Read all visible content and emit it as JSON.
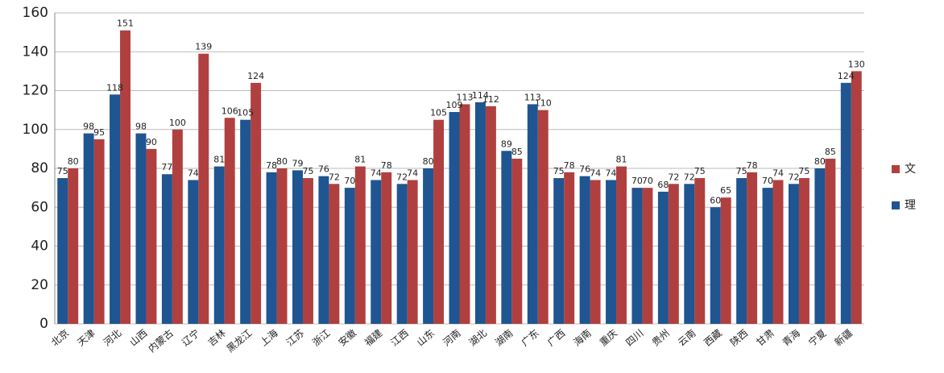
{
  "chart_data": {
    "type": "bar",
    "categories": [
      "北京",
      "天津",
      "河北",
      "山西",
      "内蒙古",
      "辽宁",
      "吉林",
      "黑龙江",
      "上海",
      "江苏",
      "浙江",
      "安徽",
      "福建",
      "江西",
      "山东",
      "河南",
      "湖北",
      "湖南",
      "广东",
      "广西",
      "海南",
      "重庆",
      "四川",
      "贵州",
      "云南",
      "西藏",
      "陕西",
      "甘肃",
      "青海",
      "宁夏",
      "新疆"
    ],
    "series": [
      {
        "name": "文",
        "color": "#b0403f",
        "values": [
          80,
          95,
          151,
          90,
          100,
          139,
          106,
          124,
          80,
          75,
          72,
          81,
          78,
          74,
          105,
          113,
          112,
          85,
          110,
          78,
          74,
          81,
          70,
          72,
          75,
          65,
          78,
          74,
          75,
          85,
          130
        ]
      },
      {
        "name": "理",
        "color": "#1f5591",
        "values": [
          75,
          98,
          118,
          98,
          77,
          74,
          81,
          105,
          78,
          79,
          76,
          70,
          74,
          72,
          80,
          109,
          114,
          89,
          113,
          75,
          76,
          74,
          70,
          68,
          72,
          60,
          75,
          70,
          72,
          80,
          124
        ]
      }
    ],
    "ylim": [
      0,
      160
    ],
    "yticks": [
      0,
      20,
      40,
      60,
      80,
      100,
      120,
      140,
      160
    ],
    "grid": true,
    "legend": "right"
  }
}
